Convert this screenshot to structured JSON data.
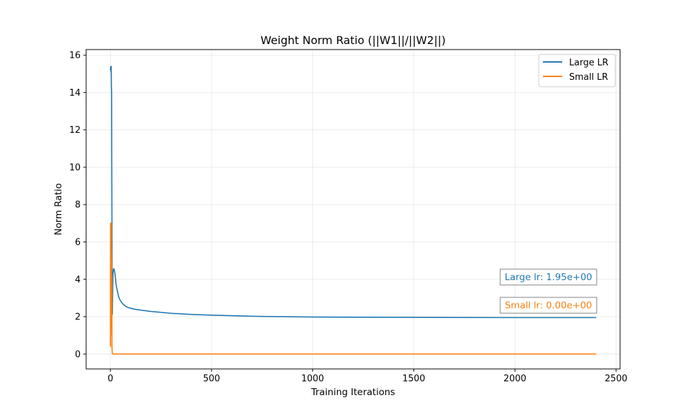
{
  "chart_data": {
    "type": "line",
    "title": "Weight Norm Ratio (||W1||/||W2||)",
    "xlabel": "Training Iterations",
    "ylabel": "Norm Ratio",
    "xlim": [
      -120,
      2520
    ],
    "ylim": [
      -0.8,
      16.3
    ],
    "xticks": [
      0,
      500,
      1000,
      1500,
      2000,
      2500
    ],
    "yticks": [
      0,
      2,
      4,
      6,
      8,
      10,
      12,
      14,
      16
    ],
    "grid": true,
    "legend_position": "top-right",
    "series": [
      {
        "name": "Large LR",
        "color": "#1f77b4",
        "x": [
          0,
          1,
          2,
          3,
          4,
          5,
          6,
          7,
          8,
          9,
          10,
          11,
          12,
          13,
          15,
          18,
          20,
          22,
          24,
          26,
          28,
          30,
          35,
          40,
          45,
          50,
          60,
          70,
          80,
          100,
          120,
          150,
          200,
          300,
          400,
          500,
          700,
          1000,
          1500,
          2000,
          2400
        ],
        "y": [
          15.3,
          15.2,
          15.4,
          15.1,
          15.4,
          14.3,
          14.0,
          10.0,
          6.0,
          2.1,
          2.2,
          3.2,
          3.9,
          4.3,
          4.55,
          4.55,
          4.45,
          4.35,
          4.15,
          3.95,
          3.75,
          3.6,
          3.35,
          3.1,
          2.95,
          2.85,
          2.7,
          2.6,
          2.52,
          2.45,
          2.4,
          2.35,
          2.28,
          2.18,
          2.12,
          2.08,
          2.02,
          1.98,
          1.96,
          1.95,
          1.95
        ]
      },
      {
        "name": "Small LR",
        "color": "#ff7f0e",
        "x": [
          0,
          0.5,
          1,
          1.5,
          2,
          2.5,
          3,
          3.5,
          4,
          4.5,
          5,
          5.5,
          6,
          6.5,
          7,
          7.5,
          8,
          9,
          10,
          12,
          15,
          20,
          2400
        ],
        "y": [
          0.5,
          7.0,
          0.4,
          6.8,
          1.0,
          6.5,
          1.5,
          6.0,
          1.8,
          7.0,
          2.5,
          5.5,
          3.0,
          5.0,
          3.5,
          4.2,
          0.3,
          0.05,
          0.02,
          0.0,
          0.0,
          0.0,
          0.0
        ]
      }
    ],
    "annotations": [
      {
        "text": "Large lr: 1.95e+00",
        "color": "#1f77b4"
      },
      {
        "text": "Small lr: 0.00e+00",
        "color": "#ff7f0e"
      }
    ]
  }
}
